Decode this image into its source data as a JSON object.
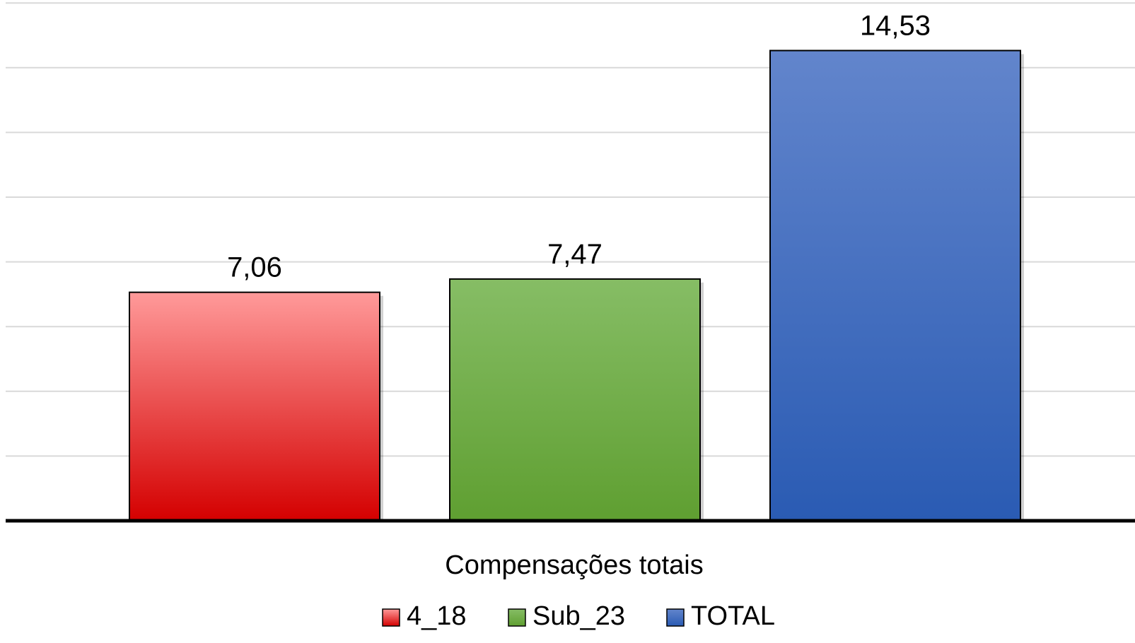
{
  "chart_data": {
    "type": "bar",
    "categories": [
      "Compensações totais"
    ],
    "series": [
      {
        "name": "4_18",
        "values": [
          7.06
        ],
        "labels": [
          "7,06"
        ],
        "color": "#d40000",
        "color_top": "#ff9a9a"
      },
      {
        "name": "Sub_23",
        "values": [
          7.47
        ],
        "labels": [
          "7,47"
        ],
        "color": "#5f9f31",
        "color_top": "#86bd65"
      },
      {
        "name": "TOTAL",
        "values": [
          14.53
        ],
        "labels": [
          "14,53"
        ],
        "color": "#2a5bb3",
        "color_top": "#6285cc"
      }
    ],
    "title": "",
    "xlabel": "",
    "ylabel": "",
    "ylim": [
      0,
      16
    ],
    "grid": true,
    "legend_position": "bottom"
  }
}
